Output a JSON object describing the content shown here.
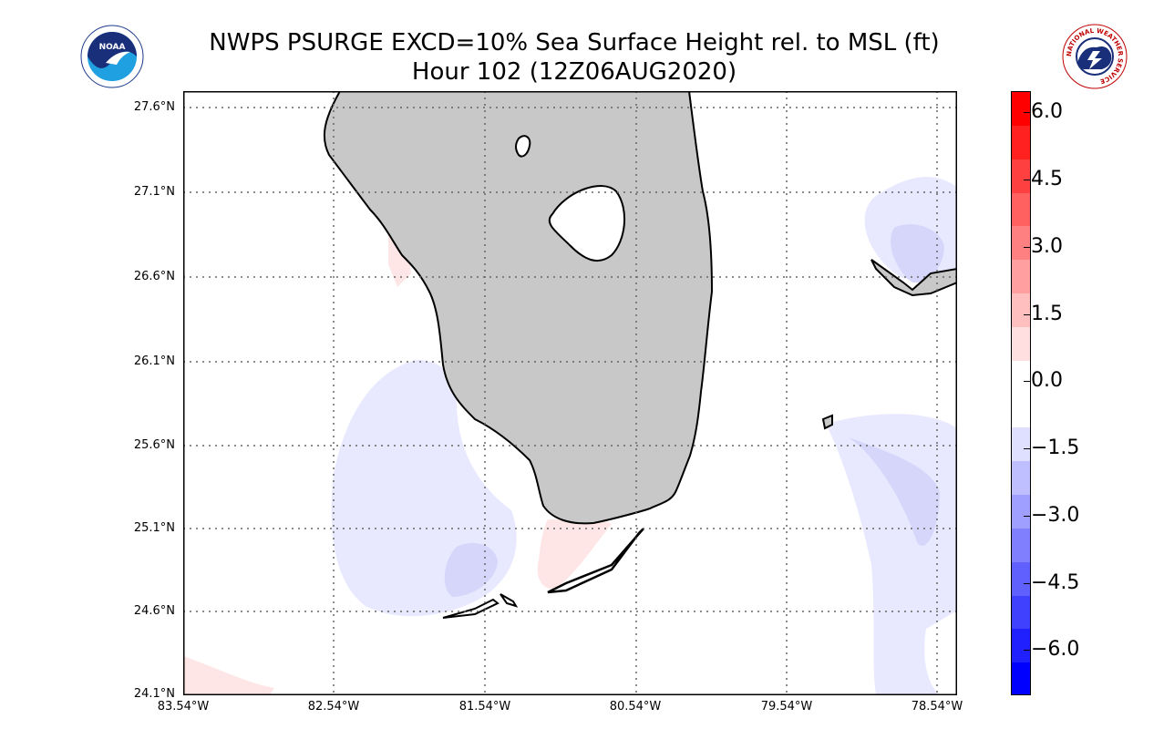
{
  "header": {
    "title_line1": "NWPS PSURGE EXCD=10% Sea Surface Height rel. to MSL (ft)",
    "title_line2": "Hour 102 (12Z06AUG2020)"
  },
  "logos": {
    "noaa_text": "NOAA",
    "nws_text": "NATIONAL WEATHER SERVICE"
  },
  "map": {
    "lat_labels": [
      "27.6°N",
      "27.1°N",
      "26.6°N",
      "26.1°N",
      "25.6°N",
      "25.1°N",
      "24.6°N",
      "24.1°N"
    ],
    "lon_labels": [
      "83.54°W",
      "82.54°W",
      "81.54°W",
      "80.54°W",
      "79.54°W",
      "78.54°W"
    ],
    "land_color": "#c8c8c8",
    "water_color": "#ffffff",
    "grid": "dotted"
  },
  "colorbar": {
    "tick_labels": [
      "6.0",
      "4.5",
      "3.0",
      "1.5",
      "0.0",
      "−1.5",
      "−3.0",
      "−4.5",
      "−6.0"
    ],
    "max_color": "#ff0000",
    "min_color": "#0000ff",
    "zero_color": "#ffffff"
  }
}
